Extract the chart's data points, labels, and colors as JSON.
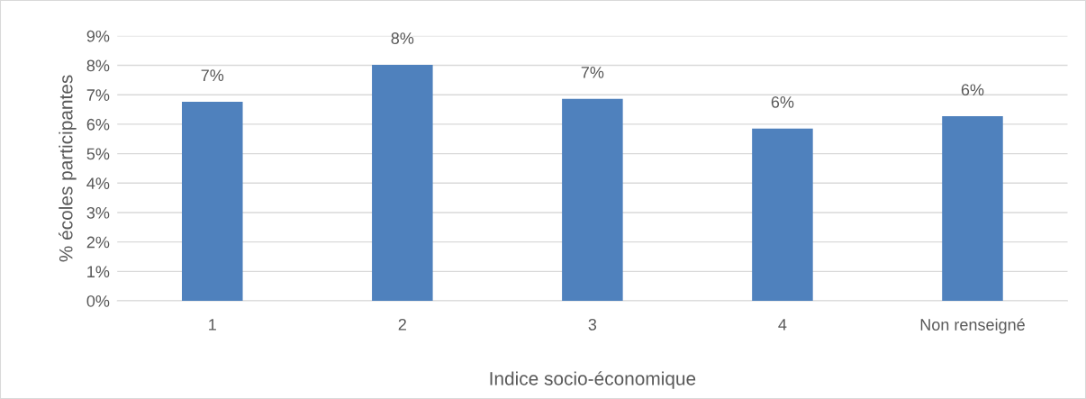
{
  "chart_data": {
    "type": "bar",
    "xlabel": "Indice socio-économique",
    "ylabel": "% écoles participantes",
    "categories": [
      "1",
      "2",
      "3",
      "4",
      "Non renseigné"
    ],
    "values": [
      6.76,
      8.02,
      6.86,
      5.85,
      6.27
    ],
    "value_labels": [
      "7%",
      "8%",
      "7%",
      "6%",
      "6%"
    ],
    "color": "#4f81bd",
    "ylim": [
      0,
      9
    ],
    "yticks": [
      {
        "value": 0,
        "label": "0%"
      },
      {
        "value": 1,
        "label": "1%"
      },
      {
        "value": 2,
        "label": "2%"
      },
      {
        "value": 3,
        "label": "3%"
      },
      {
        "value": 4,
        "label": "4%"
      },
      {
        "value": 5,
        "label": "5%"
      },
      {
        "value": 6,
        "label": "6%"
      },
      {
        "value": 7,
        "label": "7%"
      },
      {
        "value": 8,
        "label": "8%"
      },
      {
        "value": 9,
        "label": "9%"
      }
    ],
    "grid": "y"
  }
}
